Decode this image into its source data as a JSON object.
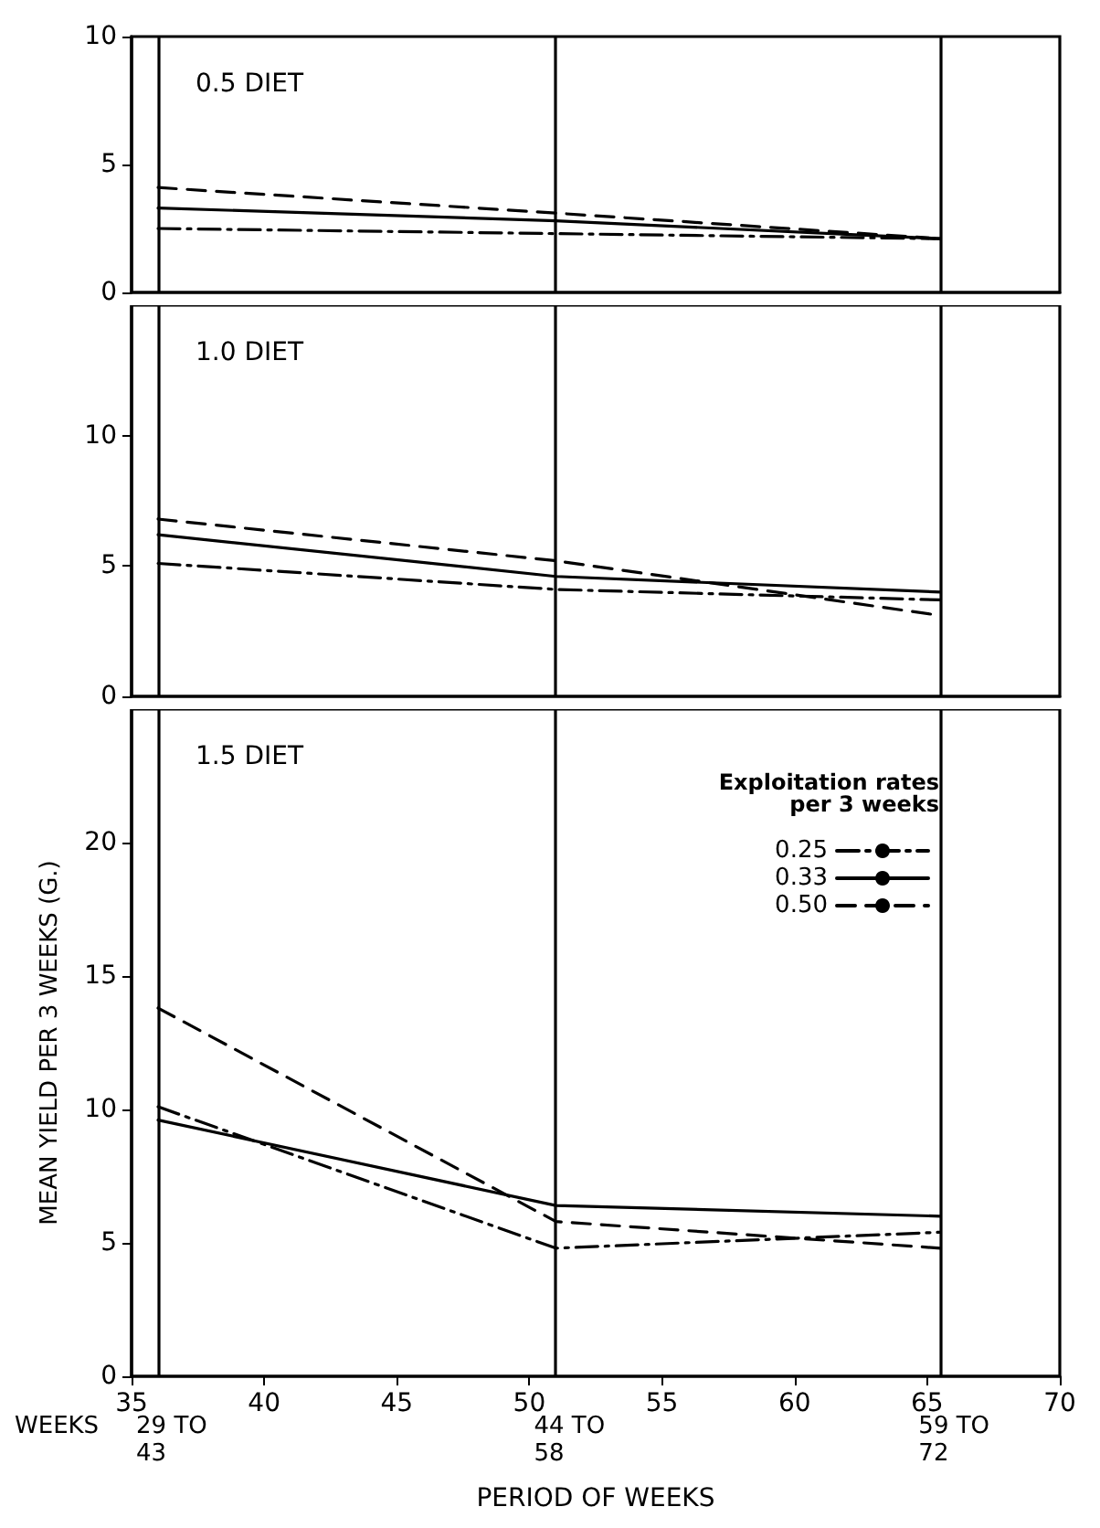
{
  "chart_data": [
    {
      "type": "line",
      "title": "0.5 DIET",
      "x": [
        36,
        51,
        65.5
      ],
      "xlim": [
        35,
        70
      ],
      "ylim": [
        0,
        10
      ],
      "yticks": [
        0,
        5,
        10
      ],
      "tick_labels": "y",
      "grid": false,
      "legend": false,
      "series": [
        {
          "color": "#000000",
          "line_style": "dashdot",
          "values": [
            2.5,
            2.3,
            2.1
          ]
        },
        {
          "color": "#000000",
          "line_style": "solid",
          "values": [
            3.3,
            2.8,
            2.1
          ]
        },
        {
          "color": "#000000",
          "line_style": "dashed",
          "values": [
            4.1,
            3.1,
            2.1
          ]
        }
      ],
      "ref_lines": [
        {
          "axis": "x",
          "value": 36,
          "color": "#000000"
        },
        {
          "axis": "x",
          "value": 51,
          "color": "#000000"
        },
        {
          "axis": "x",
          "value": 65.5,
          "color": "#000000"
        }
      ]
    },
    {
      "type": "line",
      "title": "1.0 DIET",
      "x": [
        36,
        51,
        65.5
      ],
      "xlim": [
        35,
        70
      ],
      "ylim": [
        0,
        15
      ],
      "yticks": [
        0,
        5,
        10
      ],
      "tick_labels": "y",
      "grid": false,
      "legend": false,
      "series": [
        {
          "color": "#000000",
          "line_style": "dashdot",
          "values": [
            5.1,
            4.1,
            3.7
          ]
        },
        {
          "color": "#000000",
          "line_style": "solid",
          "values": [
            6.2,
            4.6,
            4.0
          ]
        },
        {
          "color": "#000000",
          "line_style": "dashed",
          "values": [
            6.8,
            5.2,
            3.1
          ]
        }
      ],
      "ref_lines": [
        {
          "axis": "x",
          "value": 36,
          "color": "#000000"
        },
        {
          "axis": "x",
          "value": 51,
          "color": "#000000"
        },
        {
          "axis": "x",
          "value": 65.5,
          "color": "#000000"
        }
      ]
    },
    {
      "type": "line",
      "title": "1.5 DIET",
      "xlabel": "PERIOD OF WEEKS",
      "ylabel": "MEAN YIELD PER 3 WEEKS (G.)",
      "legend_title": "Exploitation rates\nper 3 weeks",
      "annotations": [
        "WEEKS"
      ],
      "x": [
        36,
        51,
        65.5
      ],
      "xlim": [
        35,
        70
      ],
      "xticks": [
        35,
        40,
        45,
        50,
        55,
        60,
        65,
        70
      ],
      "ylim": [
        0,
        25
      ],
      "yticks": [
        0,
        5,
        10,
        15,
        20
      ],
      "grid": false,
      "legend": "top right",
      "series": [
        {
          "name": "0.25",
          "color": "#000000",
          "line_style": "dashdot",
          "values": [
            10.1,
            4.8,
            5.4
          ]
        },
        {
          "name": "0.33",
          "color": "#000000",
          "line_style": "solid",
          "values": [
            9.6,
            6.4,
            6.0
          ]
        },
        {
          "name": "0.50",
          "color": "#000000",
          "line_style": "dashed",
          "values": [
            13.8,
            5.8,
            4.8
          ]
        }
      ],
      "ref_lines": [
        {
          "axis": "x",
          "value": 36,
          "label": "29 TO\n43",
          "color": "#000000"
        },
        {
          "axis": "x",
          "value": 51,
          "label": "44 TO\n58",
          "color": "#000000"
        },
        {
          "axis": "x",
          "value": 65.5,
          "label": "59 TO\n72",
          "color": "#000000"
        }
      ]
    }
  ]
}
